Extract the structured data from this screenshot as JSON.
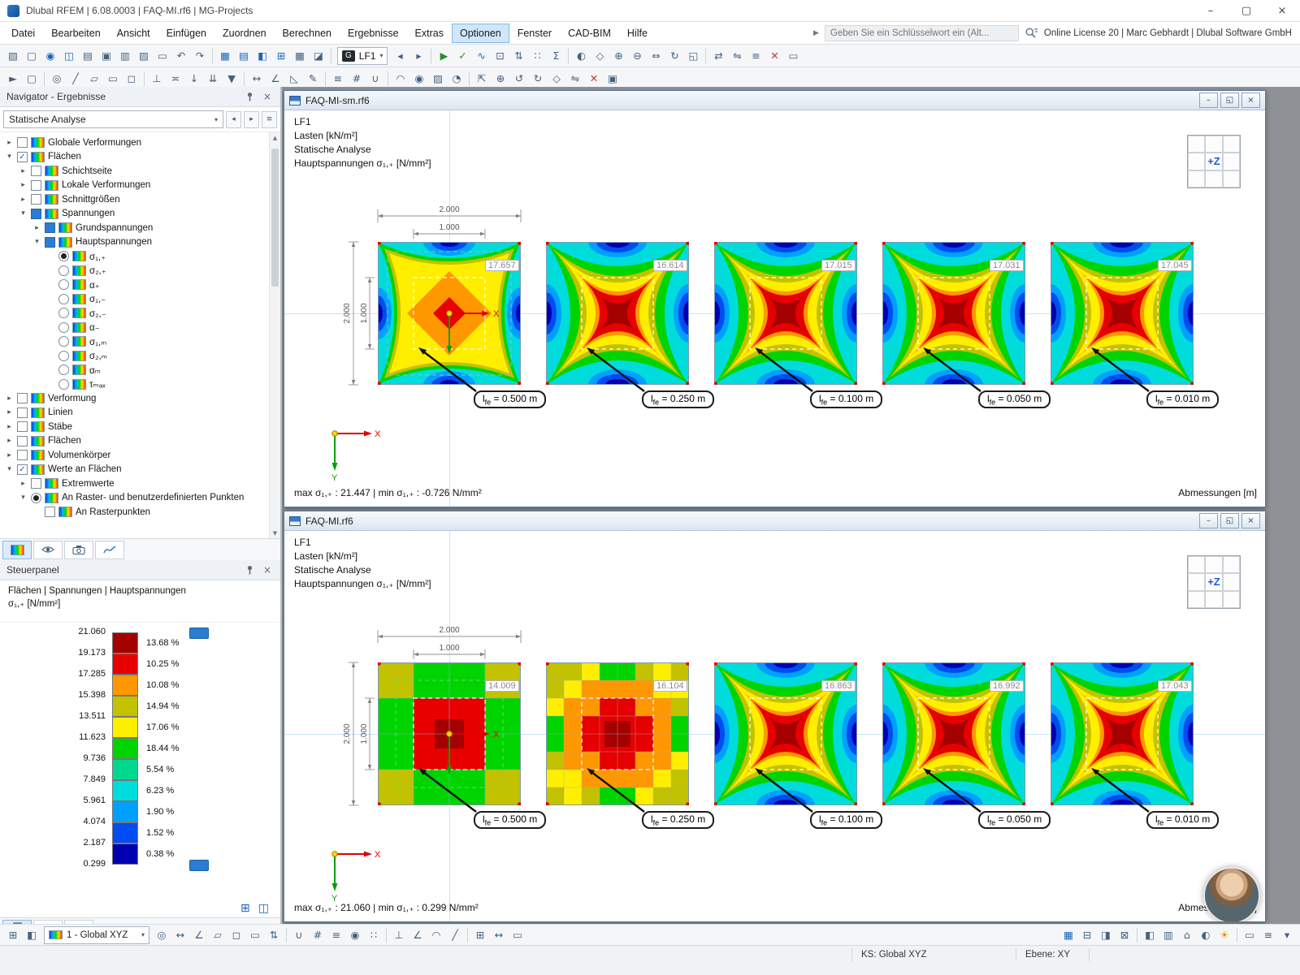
{
  "titlebar": {
    "title": "Dlubal RFEM | 6.08.0003 | FAQ-MI.rf6 | MG-Projects"
  },
  "menubar": {
    "items": [
      "Datei",
      "Bearbeiten",
      "Ansicht",
      "Einfügen",
      "Zuordnen",
      "Berechnen",
      "Ergebnisse",
      "Extras",
      "Optionen",
      "Fenster",
      "CAD-BIM",
      "Hilfe"
    ],
    "active_item": "Optionen",
    "search_placeholder": "Geben Sie ein Schlüsselwort ein (Alt...",
    "license_text": "Online License 20 | Marc Gebhardt | Dlubal Software GmbH"
  },
  "toolbar_top": {
    "load_combo": {
      "badge": "G",
      "value": "LF1"
    },
    "icons_left": [
      {
        "n": "paste-icon",
        "g": "▧"
      },
      {
        "n": "new-file-icon",
        "g": "▢"
      },
      {
        "n": "dlubal-logo-icon",
        "g": "◉",
        "c": "#1565c0"
      },
      {
        "n": "bim-manager-icon",
        "g": "◫",
        "c": "#1565c0"
      },
      {
        "n": "print-icon",
        "g": "▤"
      },
      {
        "n": "save-icon",
        "g": "▣"
      },
      {
        "n": "print-preview-icon",
        "g": "▥"
      },
      {
        "n": "copy-icon",
        "g": "▨"
      },
      {
        "n": "printout-report-icon",
        "g": "▭"
      },
      {
        "n": "undo-icon",
        "g": "↶"
      },
      {
        "n": "redo-icon",
        "g": "↷"
      },
      {
        "n": "sep"
      },
      {
        "n": "tables-icon",
        "g": "▦",
        "c": "#1565c0"
      },
      {
        "n": "table-layout-icon",
        "g": "▤",
        "c": "#1565c0"
      },
      {
        "n": "dock-panel-icon",
        "g": "◧",
        "c": "#1565c0"
      },
      {
        "n": "new-window-icon",
        "g": "⊞",
        "c": "#1565c0"
      },
      {
        "n": "results-table-icon",
        "g": "▦"
      },
      {
        "n": "printout-icon",
        "g": "◪"
      },
      {
        "n": "sep"
      }
    ],
    "icons_right": [
      {
        "n": "previous-load-case-icon",
        "g": "◂"
      },
      {
        "n": "next-load-case-icon",
        "g": "▸"
      },
      {
        "n": "sep"
      },
      {
        "n": "calculate-icon",
        "g": "▶",
        "c": "#2e8b2e"
      },
      {
        "n": "check-model-icon",
        "g": "✓",
        "c": "#2e8b2e"
      },
      {
        "n": "show-results-icon",
        "g": "∿",
        "c": "#1565c0"
      },
      {
        "n": "result-values-icon",
        "g": "⊡"
      },
      {
        "n": "extreme-values-icon",
        "g": "⇅"
      },
      {
        "n": "grid-point-values-icon",
        "g": "∷"
      },
      {
        "n": "sum-icon",
        "g": "Σ"
      },
      {
        "n": "sep"
      },
      {
        "n": "render-mode-icon",
        "g": "◐"
      },
      {
        "n": "isometric-view-icon",
        "g": "◇"
      },
      {
        "n": "zoom-in-icon",
        "g": "⊕"
      },
      {
        "n": "zoom-out-icon",
        "g": "⊖"
      },
      {
        "n": "pan-icon",
        "g": "⇔"
      },
      {
        "n": "rotate-view-icon",
        "g": "↻"
      },
      {
        "n": "previous-view-icon",
        "g": "◱"
      },
      {
        "n": "sep"
      },
      {
        "n": "move-copy-icon",
        "g": "⇄"
      },
      {
        "n": "mirror-icon",
        "g": "⇋"
      },
      {
        "n": "align-icon",
        "g": "≡"
      },
      {
        "n": "delete-icon",
        "g": "✕",
        "c": "#c0392b"
      },
      {
        "n": "frame-icon",
        "g": "▭"
      }
    ]
  },
  "toolbar_second": {
    "icons": [
      {
        "n": "select-pointer-icon",
        "g": "►"
      },
      {
        "n": "select-region-icon",
        "g": "▢"
      },
      {
        "n": "sep"
      },
      {
        "n": "node-icon",
        "g": "◎"
      },
      {
        "n": "line-icon",
        "g": "╱"
      },
      {
        "n": "surface-icon",
        "g": "▱"
      },
      {
        "n": "opening-icon",
        "g": "▭"
      },
      {
        "n": "solid-icon",
        "g": "◻"
      },
      {
        "n": "sep"
      },
      {
        "n": "support-icon",
        "g": "⊥"
      },
      {
        "n": "hinge-icon",
        "g": "≍"
      },
      {
        "n": "nodal-load-icon",
        "g": "↓"
      },
      {
        "n": "line-load-icon",
        "g": "⇊"
      },
      {
        "n": "area-load-icon",
        "g": "▼"
      },
      {
        "n": "sep"
      },
      {
        "n": "dimension-icon",
        "g": "↔"
      },
      {
        "n": "angle-dimension-icon",
        "g": "∠"
      },
      {
        "n": "slope-icon",
        "g": "◺"
      },
      {
        "n": "annotation-icon",
        "g": "✎"
      },
      {
        "n": "sep"
      },
      {
        "n": "guidelines-icon",
        "g": "≡"
      },
      {
        "n": "grid-icon",
        "g": "#"
      },
      {
        "n": "snap-icon",
        "g": "∪"
      },
      {
        "n": "sep"
      },
      {
        "n": "section-icon",
        "g": "◠"
      },
      {
        "n": "visibility-icon",
        "g": "◉"
      },
      {
        "n": "display-properties-icon",
        "g": "▨"
      },
      {
        "n": "user-profile-icon",
        "g": "◔"
      },
      {
        "n": "sep"
      },
      {
        "n": "fit-view-icon",
        "g": "⇱"
      },
      {
        "n": "zoom-window-icon",
        "g": "⊕"
      },
      {
        "n": "rotate-left-icon",
        "g": "↺"
      },
      {
        "n": "rotate-right-icon",
        "g": "↻"
      },
      {
        "n": "iso-view-icon",
        "g": "◇"
      },
      {
        "n": "mirror-view-icon",
        "g": "⇋"
      },
      {
        "n": "clear-view-icon",
        "g": "✕",
        "c": "#c0392b"
      },
      {
        "n": "camera-icon",
        "g": "▣"
      }
    ]
  },
  "navigator": {
    "title": "Navigator - Ergebnisse",
    "dropdown_value": "Statische Analyse",
    "tree": [
      {
        "label": "Globale Verformungen",
        "level": 0,
        "exp": "c",
        "ctrl": "un"
      },
      {
        "label": "Flächen",
        "level": 0,
        "exp": "e",
        "ctrl": "ch"
      },
      {
        "label": "Schichtseite",
        "level": 1,
        "exp": "c",
        "ctrl": "un"
      },
      {
        "label": "Lokale Verformungen",
        "level": 1,
        "exp": "c",
        "ctrl": "un"
      },
      {
        "label": "Schnittgrößen",
        "level": 1,
        "exp": "c",
        "ctrl": "un"
      },
      {
        "label": "Spannungen",
        "level": 1,
        "exp": "e",
        "ctrl": "pa"
      },
      {
        "label": "Grundspannungen",
        "level": 2,
        "exp": "c",
        "ctrl": "pa"
      },
      {
        "label": "Hauptspannungen",
        "level": 2,
        "exp": "e",
        "ctrl": "pa"
      },
      {
        "label": "σ₁,₊",
        "level": 3,
        "exp": "",
        "ctrl": "ro"
      },
      {
        "label": "σ₂,₊",
        "level": 3,
        "exp": "",
        "ctrl": "rf"
      },
      {
        "label": "α₊",
        "level": 3,
        "exp": "",
        "ctrl": "rf"
      },
      {
        "label": "σ₁,₋",
        "level": 3,
        "exp": "",
        "ctrl": "rf"
      },
      {
        "label": "σ₂,₋",
        "level": 3,
        "exp": "",
        "ctrl": "rf"
      },
      {
        "label": "α₋",
        "level": 3,
        "exp": "",
        "ctrl": "rf"
      },
      {
        "label": "σ₁,ₘ",
        "level": 3,
        "exp": "",
        "ctrl": "rf"
      },
      {
        "label": "σ₂,ₘ",
        "level": 3,
        "exp": "",
        "ctrl": "rf"
      },
      {
        "label": "αₘ",
        "level": 3,
        "exp": "",
        "ctrl": "rf"
      },
      {
        "label": "τₘₐₓ",
        "level": 3,
        "exp": "",
        "ctrl": "rf"
      },
      {
        "label": "Verformung",
        "level": 0,
        "exp": "c",
        "ctrl": "un"
      },
      {
        "label": "Linien",
        "level": 0,
        "exp": "c",
        "ctrl": "un"
      },
      {
        "label": "Stäbe",
        "level": 0,
        "exp": "c",
        "ctrl": "un"
      },
      {
        "label": "Flächen",
        "level": 0,
        "exp": "c",
        "ctrl": "un"
      },
      {
        "label": "Volumenkörper",
        "level": 0,
        "exp": "c",
        "ctrl": "un"
      },
      {
        "label": "Werte an Flächen",
        "level": 0,
        "exp": "e",
        "ctrl": "ch"
      },
      {
        "label": "Extremwerte",
        "level": 1,
        "exp": "c",
        "ctrl": "un"
      },
      {
        "label": "An Raster- und benutzerdefinierten Punkten",
        "level": 1,
        "exp": "e",
        "ctrl": "ro"
      },
      {
        "label": "An Rasterpunkten",
        "level": 2,
        "exp": "",
        "ctrl": "un"
      }
    ]
  },
  "steuerpanel": {
    "title": "Steuerpanel",
    "subtitle_line1": "Flächen | Spannungen | Hauptspannungen",
    "subtitle_line2": "σ₁,₊ [N/mm²]",
    "scale": {
      "values": [
        "21.060",
        "19.173",
        "17.285",
        "15.398",
        "13.511",
        "11.623",
        "9.736",
        "7.849",
        "5.961",
        "4.074",
        "2.187",
        "0.299"
      ],
      "colors": [
        "#a40000",
        "#e60000",
        "#ff9800",
        "#c2c200",
        "#ffee00",
        "#00d400",
        "#00d890",
        "#00dcdc",
        "#00a0ff",
        "#004cf0",
        "#0000b0"
      ],
      "percents": [
        "13.68 %",
        "10.25 %",
        "10.08 %",
        "14.94 %",
        "17.06 %",
        "18.44 %",
        "5.54 %",
        "6.23 %",
        "1.90 %",
        "1.52 %",
        "0.38 %"
      ]
    }
  },
  "lfe": {
    "base": "l",
    "sub": "fe"
  },
  "windows": [
    {
      "title": "FAQ-MI-sm.rf6",
      "info_lines": [
        "LF1",
        "Lasten [kN/m²]",
        "Statische Analyse",
        "Hauptspannungen σ₁,₊ [N/mm²]"
      ],
      "cube_label": "+Z",
      "dims": {
        "outer": "2.000",
        "inner": "1.000"
      },
      "plots": [
        {
          "value": "17.657",
          "mesh": "0.500 m",
          "variant": "smoothA",
          "axes": true
        },
        {
          "value": "16.614",
          "mesh": "0.250 m",
          "variant": "smooth"
        },
        {
          "value": "17.015",
          "mesh": "0.100 m",
          "variant": "smooth"
        },
        {
          "value": "17.031",
          "mesh": "0.050 m",
          "variant": "smooth"
        },
        {
          "value": "17.045",
          "mesh": "0.010 m",
          "variant": "smooth"
        }
      ],
      "status_line": "max σ₁,₊ : 21.447 | min σ₁,₊ : -0.726 N/mm²",
      "corner_label": "Abmessungen [m]"
    },
    {
      "title": "FAQ-MI.rf6",
      "info_lines": [
        "LF1",
        "Lasten [kN/m²]",
        "Statische Analyse",
        "Hauptspannungen σ₁,₊ [N/mm²]"
      ],
      "cube_label": "+Z",
      "dims": {
        "outer": "2.000",
        "inner": "1.000"
      },
      "plots": [
        {
          "value": "14.009",
          "mesh": "0.500 m",
          "variant": "grid4",
          "axes": true
        },
        {
          "value": "16.104",
          "mesh": "0.250 m",
          "variant": "grid8"
        },
        {
          "value": "16.863",
          "mesh": "0.100 m",
          "variant": "smooth"
        },
        {
          "value": "16.992",
          "mesh": "0.050 m",
          "variant": "smooth"
        },
        {
          "value": "17.043",
          "mesh": "0.010 m",
          "variant": "smooth"
        }
      ],
      "status_line": "max σ₁,₊ : 21.060 | min σ₁,₊ : 0.299 N/mm²",
      "corner_label": "Abmessungen [m]"
    }
  ],
  "bottom_toolbar": {
    "view_dropdown": "1 - Global XYZ",
    "left_icons": [
      {
        "n": "cs-manager-icon",
        "g": "⊞"
      },
      {
        "n": "cs-settings-icon",
        "g": "◧"
      }
    ],
    "icons": [
      {
        "n": "origin-icon",
        "g": "◎"
      },
      {
        "n": "move-cs-icon",
        "g": "↔"
      },
      {
        "n": "rotate-cs-icon",
        "g": "∠"
      },
      {
        "n": "work-plane-xy-icon",
        "g": "▱"
      },
      {
        "n": "work-plane-yz-icon",
        "g": "◻"
      },
      {
        "n": "work-plane-xz-icon",
        "g": "▭"
      },
      {
        "n": "plane-offset-icon",
        "g": "⇅"
      },
      {
        "n": "sep"
      },
      {
        "n": "snap-toggle-icon",
        "g": "∪"
      },
      {
        "n": "grid-toggle-icon",
        "g": "#"
      },
      {
        "n": "guidelines-toggle-icon",
        "g": "≡"
      },
      {
        "n": "object-snap-icon",
        "g": "◉"
      },
      {
        "n": "point-snap-icon",
        "g": "∷"
      },
      {
        "n": "sep"
      },
      {
        "n": "ortho-icon",
        "g": "⊥"
      },
      {
        "n": "polar-icon",
        "g": "∠"
      },
      {
        "n": "midpoint-snap-icon",
        "g": "◠"
      },
      {
        "n": "intersection-snap-icon",
        "g": "╱"
      },
      {
        "n": "sep"
      },
      {
        "n": "line-grid-icon",
        "g": "⊞"
      },
      {
        "n": "dimension-lines-icon",
        "g": "↔"
      },
      {
        "n": "comments-icon",
        "g": "▭"
      }
    ],
    "right_icons": [
      {
        "n": "result-tables-icon",
        "g": "▦",
        "c": "#1565c0"
      },
      {
        "n": "dock-bottom-icon",
        "g": "⊟"
      },
      {
        "n": "dock-right-icon",
        "g": "◨"
      },
      {
        "n": "full-screen-icon",
        "g": "⊠"
      },
      {
        "n": "sep"
      },
      {
        "n": "display-navigator-icon",
        "g": "◧"
      },
      {
        "n": "panel-icon",
        "g": "▥"
      },
      {
        "n": "home-view-icon",
        "g": "⌂"
      },
      {
        "n": "render-icon",
        "g": "◐"
      },
      {
        "n": "light-icon",
        "g": "☀",
        "c": "#d89000"
      },
      {
        "n": "sep"
      },
      {
        "n": "messages-icon",
        "g": "▭"
      },
      {
        "n": "options-menu-icon",
        "g": "≡"
      },
      {
        "n": "expand-icon",
        "g": "▾"
      }
    ]
  },
  "statusbar": {
    "ks": "KS: Global XYZ",
    "ebene": "Ebene: XY"
  }
}
